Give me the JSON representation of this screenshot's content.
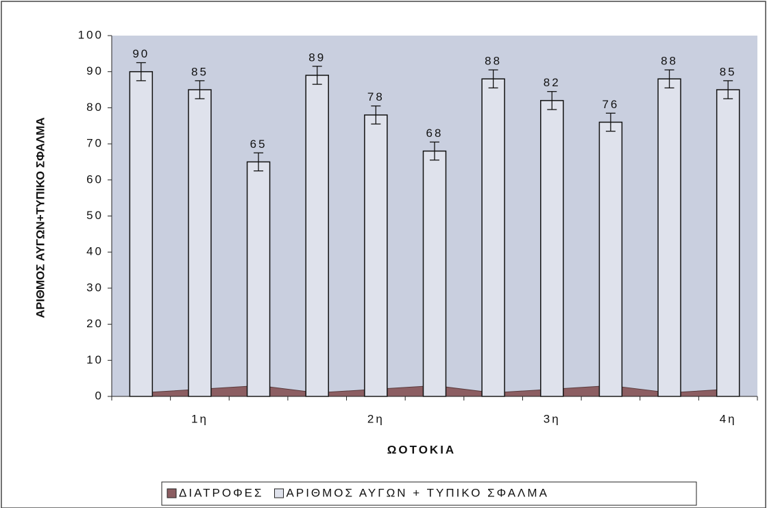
{
  "chart_data": {
    "type": "bar",
    "x_label": "ΩΟΤΟΚΙΑ",
    "y_label": "ΑΡΙΘΜΟΣ ΑΥΓΩΝ+ΤΥΠΙΚΟ ΣΦΑΛΜΑ",
    "categories": [
      null,
      "1η",
      null,
      null,
      "2η",
      null,
      null,
      "3η",
      null,
      null,
      "4η"
    ],
    "series": [
      {
        "name": "ΔΙΑΤΡΟΦΕΣ",
        "color": "#8c5e62",
        "kind": "area",
        "values": [
          1,
          2,
          3,
          1,
          2,
          3,
          1,
          2,
          3,
          1,
          2
        ]
      },
      {
        "name": "ΑΡΙΘΜΟΣ ΑΥΓΩΝ + ΤΥΠΙΚΟ ΣΦΑΛΜΑ",
        "color": "#dfe2ec",
        "kind": "bar",
        "values": [
          90,
          85,
          65,
          89,
          78,
          68,
          88,
          82,
          76,
          88,
          85
        ],
        "errors": [
          2.5,
          2.5,
          2.5,
          2.5,
          2.5,
          2.5,
          2.5,
          2.5,
          2.5,
          2.5,
          2.5
        ]
      }
    ],
    "ylim": [
      0,
      100
    ],
    "yticks": [
      0,
      10,
      20,
      30,
      40,
      50,
      60,
      70,
      80,
      90,
      100
    ],
    "plot_background": "#c9cfdf",
    "legend": "bottom"
  }
}
